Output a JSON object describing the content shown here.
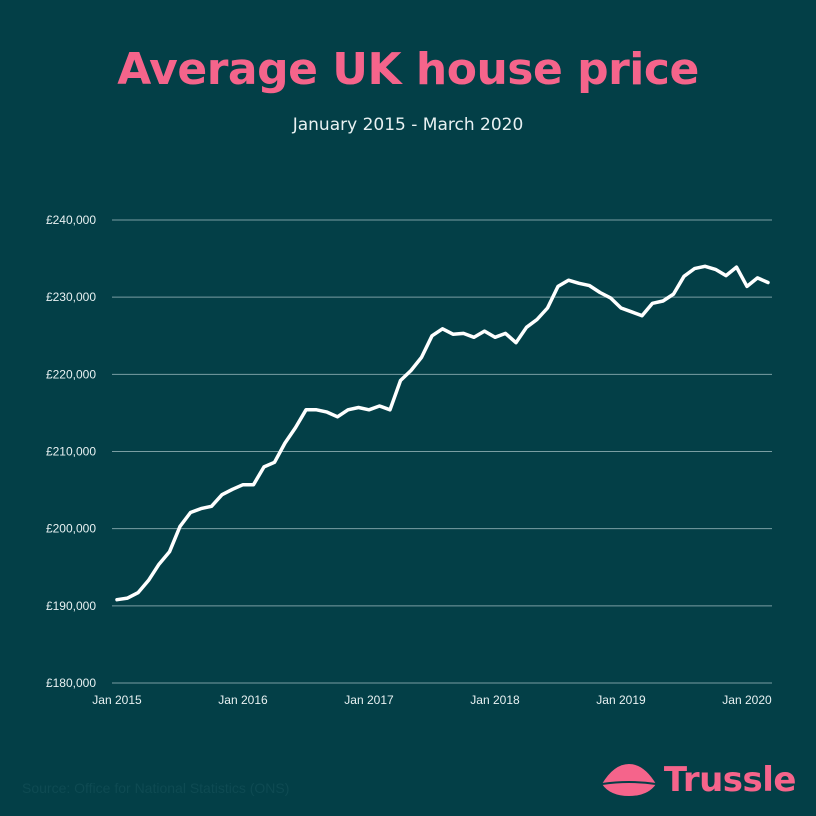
{
  "title": "Average UK house price",
  "subtitle": "January 2015 - March 2020",
  "source": "Source: Office for National Statistics (ONS)",
  "brand": {
    "name": "Trussle",
    "icon": "trussle-roof-icon"
  },
  "colors": {
    "background": "#033f47",
    "title": "#f5648b",
    "line": "#ffffff",
    "grid": "#7a9ea3",
    "tick_text": "#e8f1f2",
    "brand": "#f5648b"
  },
  "chart_data": {
    "type": "line",
    "title": "Average UK house price",
    "subtitle": "January 2015 - March 2020",
    "xlabel": "",
    "ylabel": "",
    "ylim": [
      180000,
      240000
    ],
    "yticks": [
      180000,
      190000,
      200000,
      210000,
      220000,
      230000,
      240000
    ],
    "ytick_labels": [
      "£180,000",
      "£190,000",
      "£200,000",
      "£210,000",
      "£220,000",
      "£230,000",
      "£240,000"
    ],
    "xticks": [
      "Jan 2015",
      "Jan 2016",
      "Jan 2017",
      "Jan 2018",
      "Jan 2019",
      "Jan 2020"
    ],
    "grid": true,
    "legend": "none",
    "series": [
      {
        "x": [
          "2015-01",
          "2015-02",
          "2015-03",
          "2015-04",
          "2015-05",
          "2015-06",
          "2015-07",
          "2015-08",
          "2015-09",
          "2015-10",
          "2015-11",
          "2015-12",
          "2016-01",
          "2016-02",
          "2016-03",
          "2016-04",
          "2016-05",
          "2016-06",
          "2016-07",
          "2016-08",
          "2016-09",
          "2016-10",
          "2016-11",
          "2016-12",
          "2017-01",
          "2017-02",
          "2017-03",
          "2017-04",
          "2017-05",
          "2017-06",
          "2017-07",
          "2017-08",
          "2017-09",
          "2017-10",
          "2017-11",
          "2017-12",
          "2018-01",
          "2018-02",
          "2018-03",
          "2018-04",
          "2018-05",
          "2018-06",
          "2018-07",
          "2018-08",
          "2018-09",
          "2018-10",
          "2018-11",
          "2018-12",
          "2019-01",
          "2019-02",
          "2019-03",
          "2019-04",
          "2019-05",
          "2019-06",
          "2019-07",
          "2019-08",
          "2019-09",
          "2019-10",
          "2019-11",
          "2019-12",
          "2020-01",
          "2020-02",
          "2020-03"
        ],
        "values": [
          190800,
          191000,
          191700,
          193300,
          195400,
          197000,
          200300,
          202100,
          202600,
          202900,
          204400,
          205100,
          205700,
          205700,
          208000,
          208600,
          211100,
          213100,
          215400,
          215400,
          215100,
          214500,
          215400,
          215700,
          215400,
          215900,
          215400,
          219200,
          220500,
          222200,
          225000,
          225900,
          225200,
          225300,
          224800,
          225600,
          224800,
          225300,
          224100,
          226100,
          227100,
          228600,
          231400,
          232200,
          231800,
          231500,
          230600,
          229900,
          228600,
          228100,
          227600,
          229200,
          229500,
          230400,
          232700,
          233700,
          234000,
          233600,
          232800,
          233900,
          231400,
          232500,
          231900
        ]
      }
    ]
  }
}
